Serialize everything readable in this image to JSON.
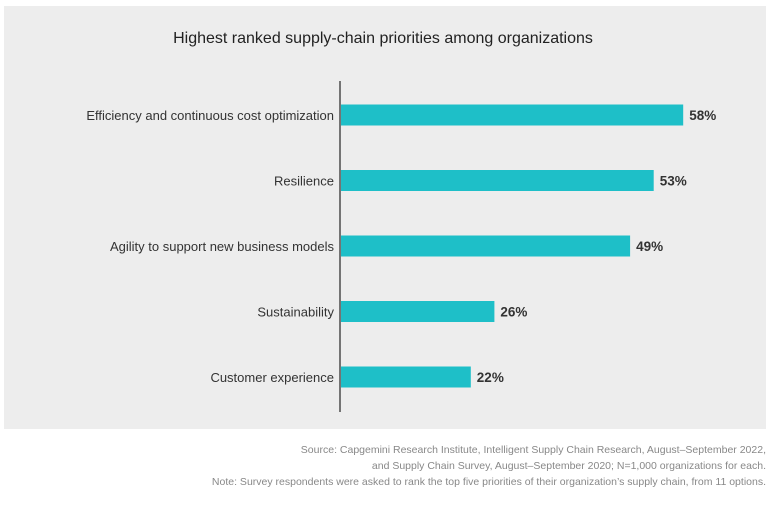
{
  "chart_data": {
    "type": "bar",
    "orientation": "horizontal",
    "title": "Highest ranked supply-chain priorities among organizations",
    "categories": [
      "Efficiency and continuous cost optimization",
      "Resilience",
      "Agility to support new business models",
      "Sustainability",
      "Customer experience"
    ],
    "values": [
      58,
      53,
      49,
      26,
      22
    ],
    "value_labels": [
      "58%",
      "53%",
      "49%",
      "26%",
      "22%"
    ],
    "xlabel": "",
    "ylabel": "",
    "xlim": [
      0,
      100
    ],
    "grid": false,
    "legend": "none",
    "bar_color": "#1ebfc8"
  },
  "footnotes": {
    "source_line_1": "Source:  Capgemini Research Institute, Intelligent Supply Chain Research, August–September 2022,",
    "source_line_2": "and Supply Chain Survey, August–September 2020; N=1,000 organizations for each.",
    "note": "Note: Survey respondents were asked to rank the top five priorities of their organization’s supply chain, from 11 options."
  }
}
